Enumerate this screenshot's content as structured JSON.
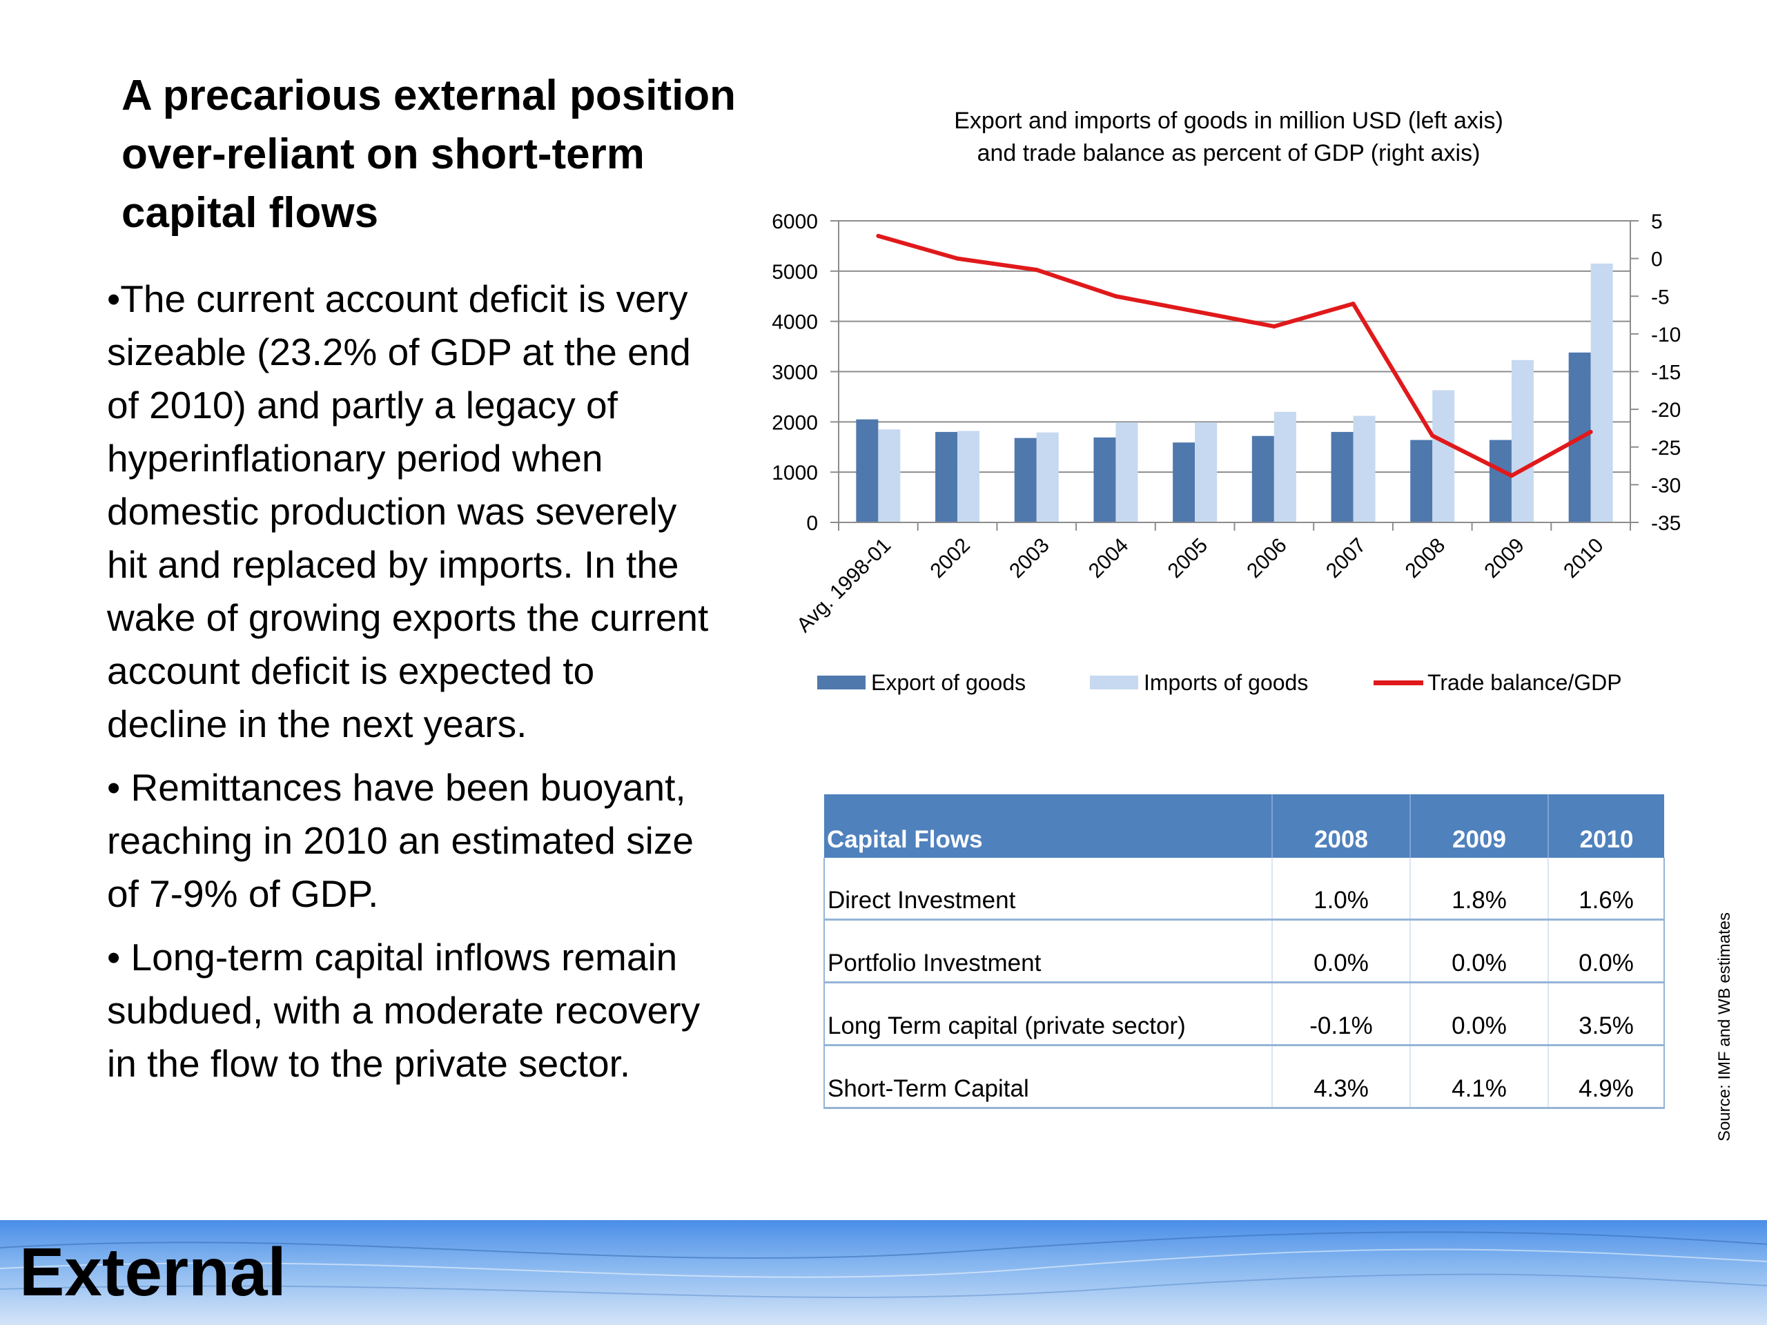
{
  "slide": {
    "title": "A precarious external position over-reliant on short-term capital flows",
    "bullets": [
      "•The current account deficit is very sizeable (23.2% of GDP at the end of 2010) and partly a legacy of hyperinflationary period when domestic production was severely hit and replaced by imports. In the wake of growing exports the current account deficit is expected to decline in the next years.",
      "• Remittances have been buoyant, reaching in 2010 an estimated size of 7-9% of GDP.",
      "• Long-term capital inflows remain subdued, with a moderate recovery in the flow to the private sector."
    ],
    "section_title": "External",
    "source_note": "Source: IMF and WB estimates"
  },
  "chart_data": {
    "type": "bar",
    "title_lines": [
      "Export and imports of goods in million USD (left axis)",
      "and trade balance as percent of GDP (right axis)"
    ],
    "categories": [
      "Avg. 1998-01",
      "2002",
      "2003",
      "2004",
      "2005",
      "2006",
      "2007",
      "2008",
      "2009",
      "2010"
    ],
    "series": [
      {
        "name": "Export of goods",
        "kind": "bar",
        "axis": "left",
        "color": "#4f78ad",
        "values": [
          2050,
          1800,
          1680,
          1690,
          1590,
          1720,
          1800,
          1640,
          1640,
          3380
        ]
      },
      {
        "name": "Imports of goods",
        "kind": "bar",
        "axis": "left",
        "color": "#c6d9f0",
        "values": [
          1850,
          1820,
          1790,
          1990,
          1990,
          2200,
          2120,
          2630,
          3230,
          5150
        ]
      },
      {
        "name": "Trade balance/GDP",
        "kind": "line",
        "axis": "right",
        "color": "#e0191b",
        "values": [
          3,
          0,
          -1.5,
          -5,
          -7,
          -9,
          -6,
          -23.5,
          -28.8,
          -23
        ]
      }
    ],
    "ylim_left": [
      0,
      6000
    ],
    "yticks_left": [
      0,
      1000,
      2000,
      3000,
      4000,
      5000,
      6000
    ],
    "ylim_right": [
      -35,
      5
    ],
    "yticks_right": [
      -35,
      -30,
      -25,
      -20,
      -15,
      -10,
      -5,
      0,
      5
    ],
    "grid": true,
    "legend_position": "bottom"
  },
  "table": {
    "headers": [
      "Capital Flows",
      "2008",
      "2009",
      "2010"
    ],
    "rows": [
      [
        "Direct Investment",
        "1.0%",
        "1.8%",
        "1.6%"
      ],
      [
        "Portfolio Investment",
        "0.0%",
        "0.0%",
        "0.0%"
      ],
      [
        "Long Term  capital (private sector)",
        "-0.1%",
        "0.0%",
        "3.5%"
      ],
      [
        "Short-Term Capital",
        "4.3%",
        "4.1%",
        "4.9%"
      ]
    ]
  }
}
